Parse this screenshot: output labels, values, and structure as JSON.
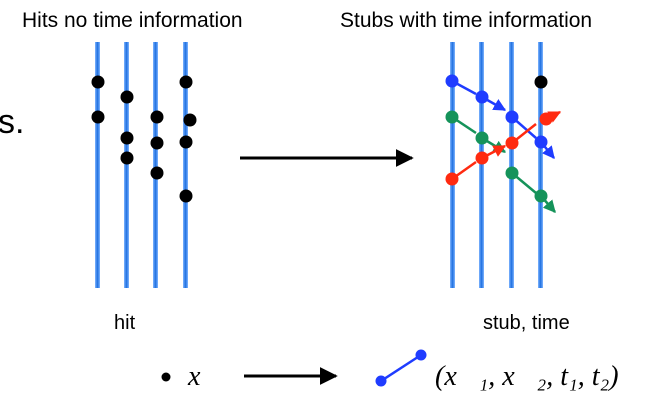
{
  "left_panel": {
    "title": "Hits no time information",
    "bottom_label": "hit"
  },
  "right_panel": {
    "title": "Stubs with time information",
    "bottom_label": "stub, time"
  },
  "edge_text": "s.",
  "legend": {
    "hit_symbol": "x⃗",
    "stub_formula": "(x⃗₁, x⃗₂, t₁, t₂)"
  },
  "colors": {
    "wire": "#1e6fe0",
    "hit_dot": "#000000",
    "stub_blue": "#1f3cff",
    "stub_green": "#15935a",
    "stub_red": "#ff2a10"
  }
}
